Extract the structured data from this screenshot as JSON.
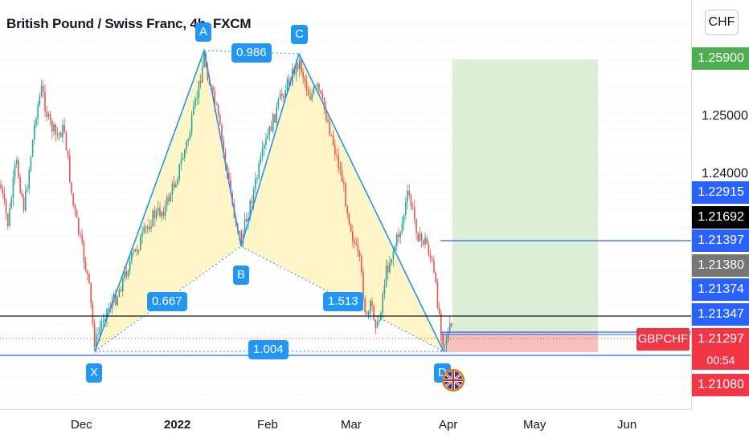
{
  "chart_title": "British Pound / Swiss Franc, 4h, FXCM",
  "currency_button": "CHF",
  "symbol_tag": "GBPCHF",
  "countdown": "00:54",
  "pattern_points": {
    "X": "X",
    "A": "A",
    "B": "B",
    "C": "C",
    "D": "D"
  },
  "ratios": {
    "xb": "0.667",
    "ac": "0.986",
    "bd": "1.513",
    "xd": "1.004"
  },
  "x_axis_ticks": [
    "Dec",
    "2022",
    "Feb",
    "Mar",
    "Apr",
    "May",
    "Jun"
  ],
  "y_axis_ticks": [
    "1.25000",
    "1.24000"
  ],
  "price_badges": {
    "target": "1.25900",
    "p1": "1.22915",
    "last": "1.21692",
    "p2": "1.21397",
    "p3": "1.21380",
    "p4": "1.21374",
    "p5": "1.21347",
    "current": "1.21297",
    "stop": "1.21080"
  },
  "colors": {
    "candle_up": "#26a69a",
    "candle_down": "#ef5350",
    "pattern_fill": "#fff3b8",
    "pattern_line": "#2196f3",
    "target_zone": "#d8ecd0",
    "stop_zone": "#f7b4b4",
    "badge_blue": "#2962ff",
    "badge_green": "#4caf50",
    "badge_black": "#000000",
    "badge_gray": "#777777",
    "badge_red": "#f23645"
  },
  "chart_data": {
    "type": "candlestick",
    "title": "British Pound / Swiss Franc, 4h, FXCM",
    "x": [
      "Dec",
      "2022",
      "Feb",
      "Mar",
      "Apr",
      "May",
      "Jun"
    ],
    "ylim": [
      1.205,
      1.262
    ],
    "harmonic_pattern": {
      "X": 1.2115,
      "A": 1.2565,
      "B": 1.2195,
      "C": 1.256,
      "D": 1.2115
    },
    "levels": [
      1.259,
      1.22915,
      1.21692,
      1.21397,
      1.2138,
      1.21374,
      1.21347,
      1.21297,
      1.2108
    ]
  }
}
